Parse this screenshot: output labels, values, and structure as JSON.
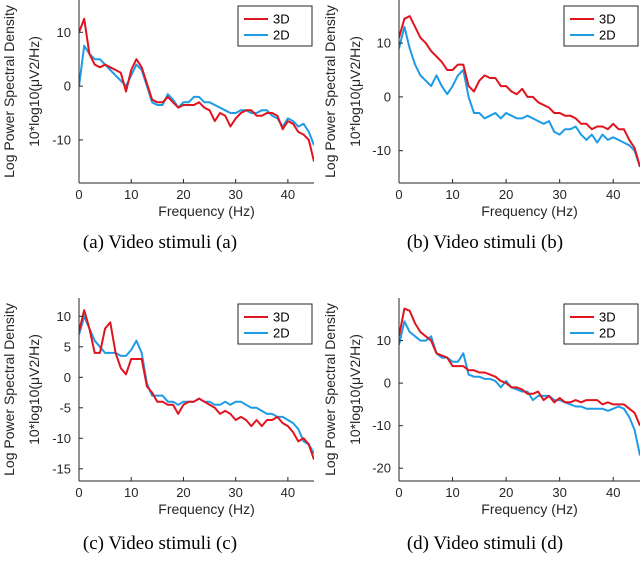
{
  "colors": {
    "series_3d": "#e0141e",
    "series_2d": "#1e9be6",
    "axis": "#262626"
  },
  "chart_data": [
    {
      "type": "line",
      "caption": "(a) Video stimuli (a)",
      "xlabel": "Frequency (Hz)",
      "ylabel_line1": "Log Power Spectral Density",
      "ylabel_line2": "10*log10(μV2/Hz)",
      "xlim": [
        0,
        45
      ],
      "ylim": [
        -18,
        16
      ],
      "xticks": [
        0,
        10,
        20,
        30,
        40
      ],
      "yticks": [
        -10,
        0,
        10
      ],
      "legend_position": "top-right",
      "series": [
        {
          "name": "3D",
          "x": [
            0,
            1,
            2,
            3,
            4,
            5,
            6,
            7,
            8,
            9,
            10,
            11,
            12,
            13,
            14,
            15,
            16,
            17,
            18,
            19,
            20,
            21,
            22,
            23,
            24,
            25,
            26,
            27,
            28,
            29,
            30,
            31,
            32,
            33,
            34,
            35,
            36,
            37,
            38,
            39,
            40,
            41,
            42,
            43,
            44,
            45
          ],
          "y": [
            10,
            12.5,
            6,
            4,
            3.5,
            4,
            3.5,
            3,
            2.5,
            -1,
            3,
            5,
            3.5,
            0.5,
            -2.5,
            -3,
            -3,
            -2,
            -3,
            -4,
            -3.5,
            -3.5,
            -3.5,
            -3,
            -4,
            -4.5,
            -6.5,
            -5,
            -5.5,
            -7.5,
            -6,
            -5,
            -4.5,
            -4.5,
            -5.5,
            -5.5,
            -5,
            -5,
            -5.5,
            -8,
            -6.5,
            -7,
            -8.5,
            -9,
            -10,
            -14
          ]
        },
        {
          "name": "2D",
          "x": [
            0,
            1,
            2,
            3,
            4,
            5,
            6,
            7,
            8,
            9,
            10,
            11,
            12,
            13,
            14,
            15,
            16,
            17,
            18,
            19,
            20,
            21,
            22,
            23,
            24,
            25,
            26,
            27,
            28,
            29,
            30,
            31,
            32,
            33,
            34,
            35,
            36,
            37,
            38,
            39,
            40,
            41,
            42,
            43,
            44,
            45
          ],
          "y": [
            0,
            7.5,
            6,
            5,
            5,
            4,
            3,
            2,
            1,
            0,
            2,
            4,
            3,
            0,
            -3,
            -3.5,
            -3.5,
            -1.5,
            -2.5,
            -4,
            -3,
            -3,
            -2,
            -2,
            -3,
            -3,
            -3.5,
            -4,
            -4.5,
            -5,
            -5,
            -4.5,
            -4.5,
            -5,
            -5,
            -4.5,
            -4.5,
            -5.5,
            -6,
            -7.5,
            -6,
            -6.5,
            -7.5,
            -7,
            -8.5,
            -11
          ]
        }
      ]
    },
    {
      "type": "line",
      "caption": "(b) Video stimuli (b)",
      "xlabel": "Frequency (Hz)",
      "ylabel_line1": "Log Power Spectral Density",
      "ylabel_line2": "10*log10(μV2/Hz)",
      "xlim": [
        0,
        45
      ],
      "ylim": [
        -16,
        18
      ],
      "xticks": [
        0,
        10,
        20,
        30,
        40
      ],
      "yticks": [
        -10,
        0,
        10
      ],
      "legend_position": "top-right",
      "series": [
        {
          "name": "3D",
          "x": [
            0,
            1,
            2,
            3,
            4,
            5,
            6,
            7,
            8,
            9,
            10,
            11,
            12,
            13,
            14,
            15,
            16,
            17,
            18,
            19,
            20,
            21,
            22,
            23,
            24,
            25,
            26,
            27,
            28,
            29,
            30,
            31,
            32,
            33,
            34,
            35,
            36,
            37,
            38,
            39,
            40,
            41,
            42,
            43,
            44,
            45
          ],
          "y": [
            11,
            14.5,
            15,
            13,
            11,
            10,
            8.5,
            7.5,
            6.5,
            5,
            5,
            6,
            6,
            2,
            1,
            3,
            4,
            3.5,
            3.5,
            2,
            2,
            1,
            0.5,
            1.5,
            0,
            0,
            -1,
            -1.5,
            -2,
            -3,
            -3,
            -3.5,
            -3.5,
            -4,
            -5,
            -5,
            -6,
            -5.5,
            -5.5,
            -6,
            -5,
            -6,
            -6,
            -8,
            -9.5,
            -13
          ]
        },
        {
          "name": "2D",
          "x": [
            0,
            1,
            2,
            3,
            4,
            5,
            6,
            7,
            8,
            9,
            10,
            11,
            12,
            13,
            14,
            15,
            16,
            17,
            18,
            19,
            20,
            21,
            22,
            23,
            24,
            25,
            26,
            27,
            28,
            29,
            30,
            31,
            32,
            33,
            34,
            35,
            36,
            37,
            38,
            39,
            40,
            41,
            42,
            43,
            44,
            45
          ],
          "y": [
            9,
            13,
            9,
            6,
            4,
            3,
            2,
            4,
            2,
            0.5,
            2,
            4,
            5,
            0,
            -3,
            -3,
            -4,
            -3.5,
            -3,
            -4,
            -3,
            -3.5,
            -4,
            -4,
            -3.5,
            -4,
            -4.5,
            -5,
            -4.5,
            -6.5,
            -7,
            -6,
            -6,
            -5.5,
            -7,
            -8,
            -7,
            -8.5,
            -7,
            -8,
            -7.5,
            -8,
            -8.5,
            -9,
            -10,
            -13
          ]
        }
      ]
    },
    {
      "type": "line",
      "caption": "(c) Video stimuli (c)",
      "xlabel": "Frequency (Hz)",
      "ylabel_line1": "Log Power Spectral Density",
      "ylabel_line2": "10*log10(μV2/Hz)",
      "xlim": [
        0,
        45
      ],
      "ylim": [
        -17,
        13
      ],
      "xticks": [
        0,
        10,
        20,
        30,
        40
      ],
      "yticks": [
        -15,
        -10,
        -5,
        0,
        5,
        10
      ],
      "legend_position": "top-right",
      "series": [
        {
          "name": "3D",
          "x": [
            0,
            1,
            2,
            3,
            4,
            5,
            6,
            7,
            8,
            9,
            10,
            11,
            12,
            13,
            14,
            15,
            16,
            17,
            18,
            19,
            20,
            21,
            22,
            23,
            24,
            25,
            26,
            27,
            28,
            29,
            30,
            31,
            32,
            33,
            34,
            35,
            36,
            37,
            38,
            39,
            40,
            41,
            42,
            43,
            44,
            45
          ],
          "y": [
            7.5,
            11,
            8,
            4,
            4,
            8,
            9,
            4,
            1.5,
            0.5,
            3,
            3,
            3,
            -1.5,
            -2.5,
            -4,
            -4,
            -4.5,
            -4.5,
            -6,
            -4.5,
            -4,
            -4,
            -3.5,
            -4,
            -4.5,
            -5,
            -6,
            -5.5,
            -6,
            -7,
            -6.5,
            -7,
            -8,
            -7,
            -8,
            -7,
            -7,
            -6.5,
            -7.5,
            -8,
            -9,
            -10.5,
            -10,
            -11,
            -13.5
          ]
        },
        {
          "name": "2D",
          "x": [
            0,
            1,
            2,
            3,
            4,
            5,
            6,
            7,
            8,
            9,
            10,
            11,
            12,
            13,
            14,
            15,
            16,
            17,
            18,
            19,
            20,
            21,
            22,
            23,
            24,
            25,
            26,
            27,
            28,
            29,
            30,
            31,
            32,
            33,
            34,
            35,
            36,
            37,
            38,
            39,
            40,
            41,
            42,
            43,
            44,
            45
          ],
          "y": [
            7,
            10,
            8,
            6,
            5,
            4,
            4,
            4,
            3.5,
            3.5,
            4.5,
            6,
            4,
            -1,
            -3,
            -3,
            -3,
            -4,
            -4,
            -4.5,
            -4,
            -4,
            -4,
            -3.5,
            -4,
            -4,
            -4.5,
            -4.5,
            -4,
            -4.5,
            -4,
            -4,
            -4.5,
            -5,
            -5,
            -5.5,
            -6,
            -6,
            -6.5,
            -6.5,
            -7,
            -7.5,
            -8.5,
            -10.5,
            -11,
            -12.5
          ]
        }
      ]
    },
    {
      "type": "line",
      "caption": "(d) Video stimuli (d)",
      "xlabel": "Frequency (Hz)",
      "ylabel_line1": "Log Power Spectral Density",
      "ylabel_line2": "10*log10(μV2/Hz)",
      "xlim": [
        0,
        45
      ],
      "ylim": [
        -23,
        20
      ],
      "xticks": [
        0,
        10,
        20,
        30,
        40
      ],
      "yticks": [
        -20,
        -10,
        0,
        10
      ],
      "legend_position": "top-right",
      "series": [
        {
          "name": "3D",
          "x": [
            0,
            1,
            2,
            3,
            4,
            5,
            6,
            7,
            8,
            9,
            10,
            11,
            12,
            13,
            14,
            15,
            16,
            17,
            18,
            19,
            20,
            21,
            22,
            23,
            24,
            25,
            26,
            27,
            28,
            29,
            30,
            31,
            32,
            33,
            34,
            35,
            36,
            37,
            38,
            39,
            40,
            41,
            42,
            43,
            44,
            45
          ],
          "y": [
            11,
            17.5,
            17,
            14,
            12,
            11,
            10,
            7,
            6.5,
            6,
            4,
            4,
            4,
            3,
            3,
            2.5,
            2.5,
            2,
            1.5,
            0.5,
            0,
            -1,
            -1,
            -1.5,
            -2.5,
            -2.5,
            -2,
            -4,
            -3,
            -4.5,
            -3.5,
            -4.5,
            -4.5,
            -4,
            -4.5,
            -4,
            -4,
            -4,
            -5,
            -4.5,
            -5,
            -5,
            -5,
            -6,
            -7,
            -10
          ]
        },
        {
          "name": "2D",
          "x": [
            0,
            1,
            2,
            3,
            4,
            5,
            6,
            7,
            8,
            9,
            10,
            11,
            12,
            13,
            14,
            15,
            16,
            17,
            18,
            19,
            20,
            21,
            22,
            23,
            24,
            25,
            26,
            27,
            28,
            29,
            30,
            31,
            32,
            33,
            34,
            35,
            36,
            37,
            38,
            39,
            40,
            41,
            42,
            43,
            44,
            45
          ],
          "y": [
            9,
            14.5,
            12,
            11,
            10,
            10,
            11,
            7,
            6,
            6,
            5,
            5,
            7,
            2,
            1.5,
            1.5,
            1,
            1,
            0.5,
            -1,
            0.5,
            -1,
            -1.5,
            -2,
            -2,
            -4,
            -3,
            -3,
            -3,
            -4,
            -4,
            -4.5,
            -5,
            -5.5,
            -5.5,
            -6,
            -6,
            -6,
            -6,
            -6.5,
            -6,
            -5.5,
            -6,
            -8,
            -11,
            -17
          ]
        }
      ]
    }
  ]
}
